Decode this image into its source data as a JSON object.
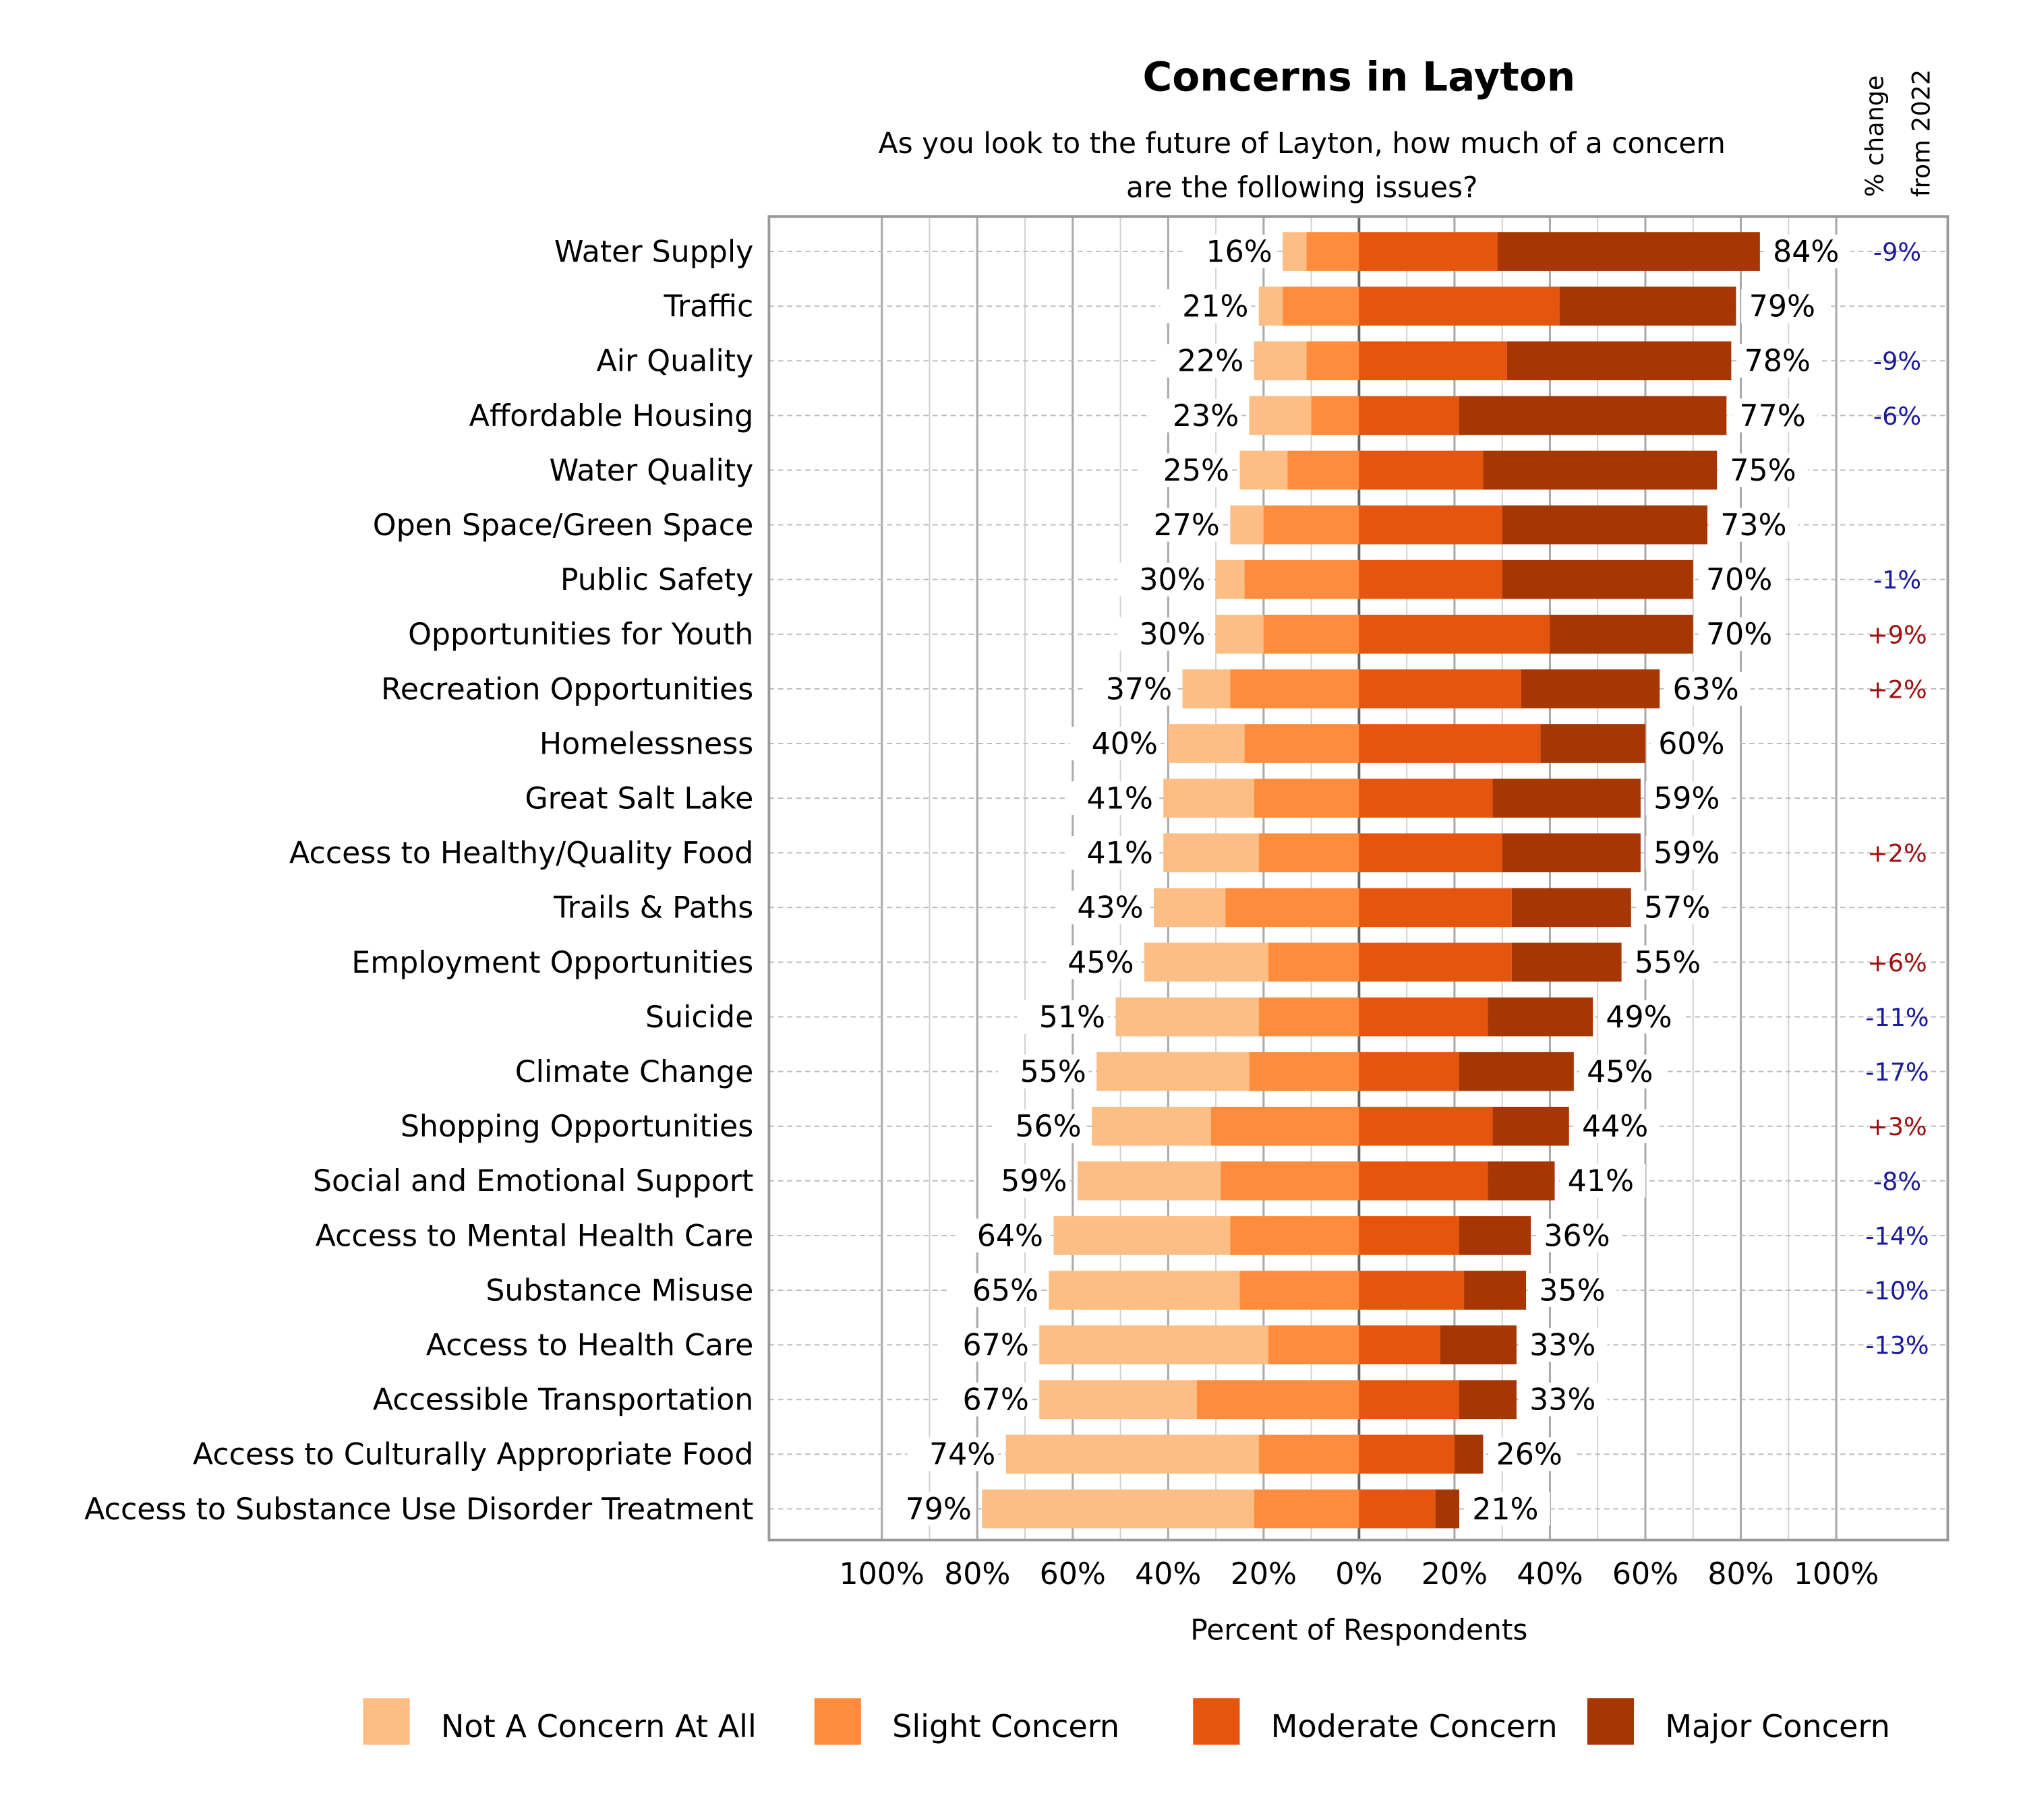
{
  "chart_data": {
    "type": "bar",
    "orientation": "horizontal-diverging-stacked",
    "title": "Concerns in Layton",
    "subtitle": [
      "As you look to the future of Layton, how much of a concern",
      "are the following issues?"
    ],
    "xlabel": "Percent of Respondents",
    "change_header": [
      "% change",
      "from 2022"
    ],
    "xlim": [
      -100,
      100
    ],
    "xticks": [
      "100%",
      "80%",
      "60%",
      "40%",
      "20%",
      "0%",
      "20%",
      "40%",
      "60%",
      "80%",
      "100%"
    ],
    "grid": true,
    "legend_position": "bottom",
    "series": [
      {
        "name": "Not A Concern At All",
        "color": "#FDBE85",
        "side": "left"
      },
      {
        "name": "Slight Concern",
        "color": "#FD8D3C",
        "side": "left"
      },
      {
        "name": "Moderate Concern",
        "color": "#E6550D",
        "side": "right"
      },
      {
        "name": "Major Concern",
        "color": "#A63603",
        "side": "right"
      }
    ],
    "change_colors": {
      "negative": "#1A1A9C",
      "positive": "#A01010"
    },
    "rows": [
      {
        "category": "Water Supply",
        "values": [
          5,
          11,
          29,
          55
        ],
        "left_label": "16%",
        "right_label": "84%",
        "change": "-9%"
      },
      {
        "category": "Traffic",
        "values": [
          5,
          16,
          42,
          37
        ],
        "left_label": "21%",
        "right_label": "79%",
        "change": ""
      },
      {
        "category": "Air Quality",
        "values": [
          11,
          11,
          31,
          47
        ],
        "left_label": "22%",
        "right_label": "78%",
        "change": "-9%"
      },
      {
        "category": "Affordable Housing",
        "values": [
          13,
          10,
          21,
          56
        ],
        "left_label": "23%",
        "right_label": "77%",
        "change": "-6%"
      },
      {
        "category": "Water Quality",
        "values": [
          10,
          15,
          26,
          49
        ],
        "left_label": "25%",
        "right_label": "75%",
        "change": ""
      },
      {
        "category": "Open Space/Green Space",
        "values": [
          7,
          20,
          30,
          43
        ],
        "left_label": "27%",
        "right_label": "73%",
        "change": ""
      },
      {
        "category": "Public Safety",
        "values": [
          6,
          24,
          30,
          40
        ],
        "left_label": "30%",
        "right_label": "70%",
        "change": "-1%"
      },
      {
        "category": "Opportunities for Youth",
        "values": [
          10,
          20,
          40,
          30
        ],
        "left_label": "30%",
        "right_label": "70%",
        "change": "+9%"
      },
      {
        "category": "Recreation Opportunities",
        "values": [
          10,
          27,
          34,
          29
        ],
        "left_label": "37%",
        "right_label": "63%",
        "change": "+2%"
      },
      {
        "category": "Homelessness",
        "values": [
          16,
          24,
          38,
          22
        ],
        "left_label": "40%",
        "right_label": "60%",
        "change": ""
      },
      {
        "category": "Great Salt Lake",
        "values": [
          19,
          22,
          28,
          31
        ],
        "left_label": "41%",
        "right_label": "59%",
        "change": ""
      },
      {
        "category": "Access to Healthy/Quality Food",
        "values": [
          20,
          21,
          30,
          29
        ],
        "left_label": "41%",
        "right_label": "59%",
        "change": "+2%"
      },
      {
        "category": "Trails & Paths",
        "values": [
          15,
          28,
          32,
          25
        ],
        "left_label": "43%",
        "right_label": "57%",
        "change": ""
      },
      {
        "category": "Employment Opportunities",
        "values": [
          26,
          19,
          32,
          23
        ],
        "left_label": "45%",
        "right_label": "55%",
        "change": "+6%"
      },
      {
        "category": "Suicide",
        "values": [
          30,
          21,
          27,
          22
        ],
        "left_label": "51%",
        "right_label": "49%",
        "change": "-11%"
      },
      {
        "category": "Climate Change",
        "values": [
          32,
          23,
          21,
          24
        ],
        "left_label": "55%",
        "right_label": "45%",
        "change": "-17%"
      },
      {
        "category": "Shopping Opportunities",
        "values": [
          25,
          31,
          28,
          16
        ],
        "left_label": "56%",
        "right_label": "44%",
        "change": "+3%"
      },
      {
        "category": "Social and Emotional Support",
        "values": [
          30,
          29,
          27,
          14
        ],
        "left_label": "59%",
        "right_label": "41%",
        "change": "-8%"
      },
      {
        "category": "Access to Mental Health Care",
        "values": [
          37,
          27,
          21,
          15
        ],
        "left_label": "64%",
        "right_label": "36%",
        "change": "-14%"
      },
      {
        "category": "Substance Misuse",
        "values": [
          40,
          25,
          22,
          13
        ],
        "left_label": "65%",
        "right_label": "35%",
        "change": "-10%"
      },
      {
        "category": "Access to Health Care",
        "values": [
          48,
          19,
          17,
          16
        ],
        "left_label": "67%",
        "right_label": "33%",
        "change": "-13%"
      },
      {
        "category": "Accessible Transportation",
        "values": [
          33,
          34,
          21,
          12
        ],
        "left_label": "67%",
        "right_label": "33%",
        "change": ""
      },
      {
        "category": "Access to Culturally Appropriate Food",
        "values": [
          53,
          21,
          20,
          6
        ],
        "left_label": "74%",
        "right_label": "26%",
        "change": ""
      },
      {
        "category": "Access to Substance Use Disorder Treatment",
        "values": [
          57,
          22,
          16,
          5
        ],
        "left_label": "79%",
        "right_label": "21%",
        "change": ""
      }
    ]
  }
}
